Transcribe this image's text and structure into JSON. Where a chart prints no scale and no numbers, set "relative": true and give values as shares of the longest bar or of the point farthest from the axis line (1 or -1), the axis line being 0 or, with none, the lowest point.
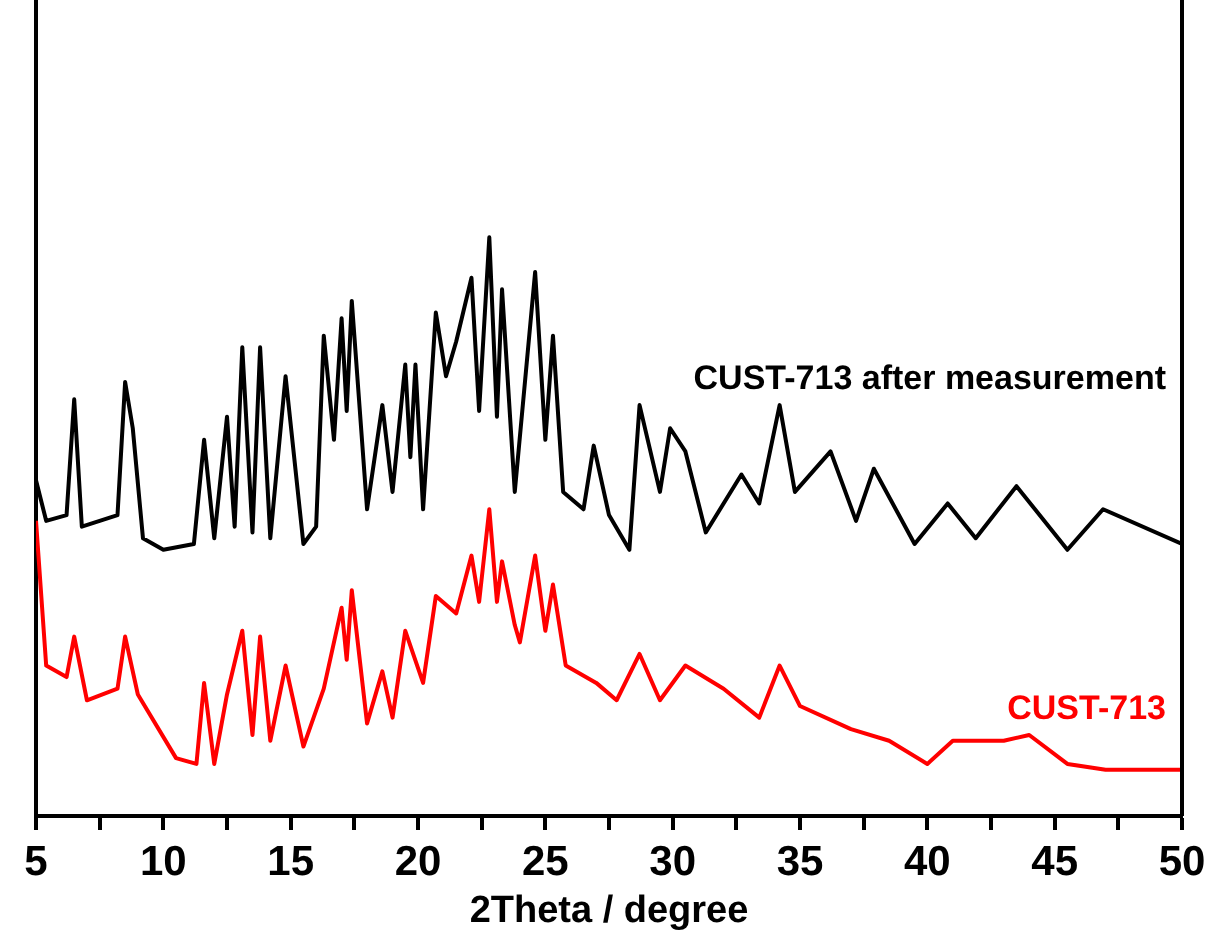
{
  "chart_data": {
    "type": "line",
    "relative": true,
    "xlabel": "2Theta / degree",
    "xlim": [
      5,
      50
    ],
    "xticks": [
      5,
      {
        "value": 7.5,
        "label": null
      },
      10,
      {
        "value": 12.5,
        "label": null
      },
      15,
      {
        "value": 17.5,
        "label": null
      },
      20,
      {
        "value": 22.5,
        "label": null
      },
      25,
      {
        "value": 27.5,
        "label": null
      },
      30,
      {
        "value": 32.5,
        "label": null
      },
      35,
      {
        "value": 37.5,
        "label": null
      },
      40,
      {
        "value": 42.5,
        "label": null
      },
      45,
      {
        "value": 47.5,
        "label": null
      },
      50
    ],
    "grid": false,
    "legend": false,
    "marker": "none",
    "line_style": "solid",
    "tick_labels": "x",
    "series": [
      {
        "name": "CUST-713 after measurement",
        "color": "#000000",
        "x": [
          5,
          5.4,
          6.2,
          6.5,
          6.8,
          8.2,
          8.5,
          8.8,
          9.2,
          10,
          11.2,
          11.6,
          12,
          12.5,
          12.8,
          13.1,
          13.5,
          13.8,
          14.2,
          14.8,
          15.5,
          16,
          16.3,
          16.7,
          17,
          17.2,
          17.4,
          18,
          18.6,
          19,
          19.5,
          19.7,
          19.9,
          20.2,
          20.7,
          21.1,
          21.5,
          22.1,
          22.4,
          22.8,
          23.1,
          23.3,
          23.8,
          24.6,
          25,
          25.3,
          25.7,
          26.5,
          26.9,
          27.5,
          28.3,
          28.7,
          29.5,
          29.9,
          30.5,
          31.3,
          32.7,
          33.4,
          34.2,
          34.8,
          36.2,
          37.2,
          37.9,
          39.5,
          40.8,
          41.9,
          43.5,
          45.5,
          46.9,
          50
        ],
        "values": [
          0.58,
          0.51,
          0.52,
          0.72,
          0.5,
          0.52,
          0.75,
          0.67,
          0.48,
          0.46,
          0.47,
          0.65,
          0.48,
          0.69,
          0.5,
          0.81,
          0.49,
          0.81,
          0.48,
          0.76,
          0.47,
          0.5,
          0.83,
          0.65,
          0.86,
          0.7,
          0.89,
          0.53,
          0.71,
          0.56,
          0.78,
          0.62,
          0.78,
          0.53,
          0.87,
          0.76,
          0.82,
          0.93,
          0.7,
          1.0,
          0.69,
          0.91,
          0.56,
          0.94,
          0.65,
          0.83,
          0.56,
          0.53,
          0.64,
          0.52,
          0.46,
          0.71,
          0.56,
          0.67,
          0.63,
          0.49,
          0.59,
          0.54,
          0.71,
          0.56,
          0.63,
          0.51,
          0.6,
          0.47,
          0.54,
          0.48,
          0.57,
          0.46,
          0.53,
          0.47
        ]
      },
      {
        "name": "CUST-713",
        "color": "#ff0000",
        "x": [
          5,
          5.4,
          6.2,
          6.5,
          7,
          8.2,
          8.5,
          9,
          10.5,
          11.3,
          11.6,
          12,
          12.5,
          13.1,
          13.5,
          13.8,
          14.2,
          14.8,
          15.5,
          16.3,
          17,
          17.2,
          17.4,
          18,
          18.6,
          19,
          19.5,
          20.2,
          20.7,
          21.5,
          22.1,
          22.4,
          22.8,
          23.1,
          23.3,
          23.8,
          24,
          24.6,
          25,
          25.3,
          25.8,
          27,
          27.8,
          28.7,
          29.5,
          30.5,
          32,
          33.4,
          34.2,
          35,
          37,
          38.5,
          40,
          41,
          43,
          44,
          45.5,
          47,
          50
        ],
        "values": [
          0.51,
          0.26,
          0.24,
          0.31,
          0.2,
          0.22,
          0.31,
          0.21,
          0.1,
          0.09,
          0.23,
          0.09,
          0.21,
          0.32,
          0.14,
          0.31,
          0.13,
          0.26,
          0.12,
          0.22,
          0.36,
          0.27,
          0.39,
          0.16,
          0.25,
          0.17,
          0.32,
          0.23,
          0.38,
          0.35,
          0.45,
          0.37,
          0.53,
          0.37,
          0.44,
          0.33,
          0.3,
          0.45,
          0.32,
          0.4,
          0.26,
          0.23,
          0.2,
          0.28,
          0.2,
          0.26,
          0.22,
          0.17,
          0.26,
          0.19,
          0.15,
          0.13,
          0.09,
          0.13,
          0.13,
          0.14,
          0.09,
          0.08,
          0.08
        ]
      }
    ]
  }
}
